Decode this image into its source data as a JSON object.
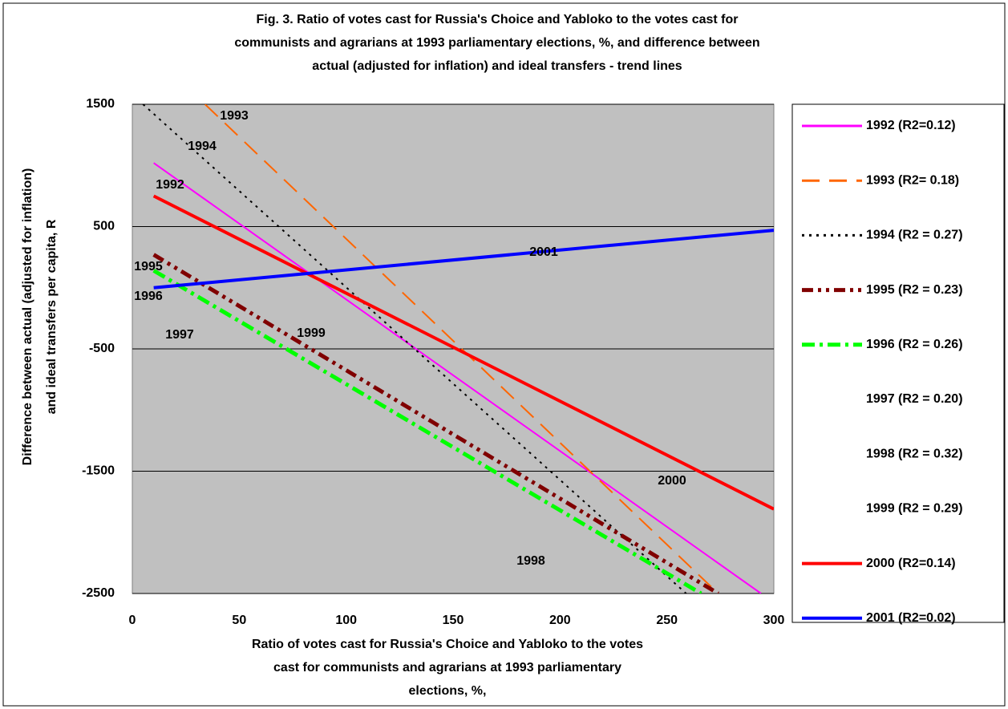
{
  "chart_data": {
    "type": "line",
    "title": [
      "Fig. 3. Ratio of votes cast for Russia's Choice and Yabloko to the votes cast for",
      "communists and agrarians at 1993 parliamentary elections, %, and difference between",
      "actual (adjusted for inflation) and ideal transfers - trend lines"
    ],
    "x_label": [
      "Ratio of votes cast for Russia's Choice and Yabloko to the votes",
      "cast for communists and agrarians at 1993 parliamentary",
      "elections, %,"
    ],
    "y_label": [
      "Difference between actual (adjusted for inflation)",
      "and ideal transfers per capita, R"
    ],
    "xlim": [
      0,
      300
    ],
    "xticks": [
      0,
      50,
      100,
      150,
      200,
      250,
      300
    ],
    "ylim": [
      -2500,
      1500
    ],
    "yticks": [
      -2500,
      -1500,
      -500,
      500,
      1500
    ],
    "grid": true,
    "plot_background": "#c0c0c0",
    "legend": "right",
    "series": [
      {
        "name": "1992 (R2=0.12)",
        "color": "#ff00ff",
        "style": "solid",
        "width": 2,
        "x": [
          10,
          294
        ],
        "values": [
          1020,
          -2500
        ]
      },
      {
        "name": "1993 (R2= 0.18)",
        "color": "#ff6600",
        "style": "longdash",
        "width": 2,
        "x": [
          34,
          274
        ],
        "values": [
          1500,
          -2500
        ]
      },
      {
        "name": "1994 (R2 = 0.27)",
        "color": "#000000",
        "style": "dot",
        "width": 2,
        "x": [
          5,
          259
        ],
        "values": [
          1500,
          -2500
        ]
      },
      {
        "name": "1995 (R2 = 0.23)",
        "color": "#800000",
        "style": "dashdotdot",
        "width": 5,
        "x": [
          10,
          274
        ],
        "values": [
          270,
          -2500
        ]
      },
      {
        "name": "1996 (R2 = 0.26)",
        "color": "#00ff00",
        "style": "dashdot",
        "width": 5,
        "x": [
          10,
          266
        ],
        "values": [
          140,
          -2500
        ]
      },
      {
        "name": "1997 (R2 = 0.20)",
        "color": null,
        "style": "none",
        "width": 0,
        "x": [
          null,
          null
        ],
        "values": [
          null,
          null
        ]
      },
      {
        "name": "1998 (R2 = 0.32)",
        "color": null,
        "style": "none",
        "width": 0,
        "x": [
          null,
          null
        ],
        "values": [
          null,
          null
        ]
      },
      {
        "name": "1999 (R2 = 0.29)",
        "color": null,
        "style": "none",
        "width": 0,
        "x": [
          null,
          null
        ],
        "values": [
          null,
          null
        ]
      },
      {
        "name": "2000 (R2=0.14)",
        "color": "#ff0000",
        "style": "solid",
        "width": 4,
        "x": [
          10,
          300
        ],
        "values": [
          750,
          -1810
        ]
      },
      {
        "name": "2001 (R2=0.02)",
        "color": "#0000ff",
        "style": "solid",
        "width": 4,
        "x": [
          10,
          300
        ],
        "values": [
          0,
          470
        ]
      }
    ],
    "annotations": [
      "1993",
      "1994",
      "1992",
      "2001",
      "1995",
      "1996",
      "1997",
      "1999",
      "2000",
      "1998"
    ]
  }
}
